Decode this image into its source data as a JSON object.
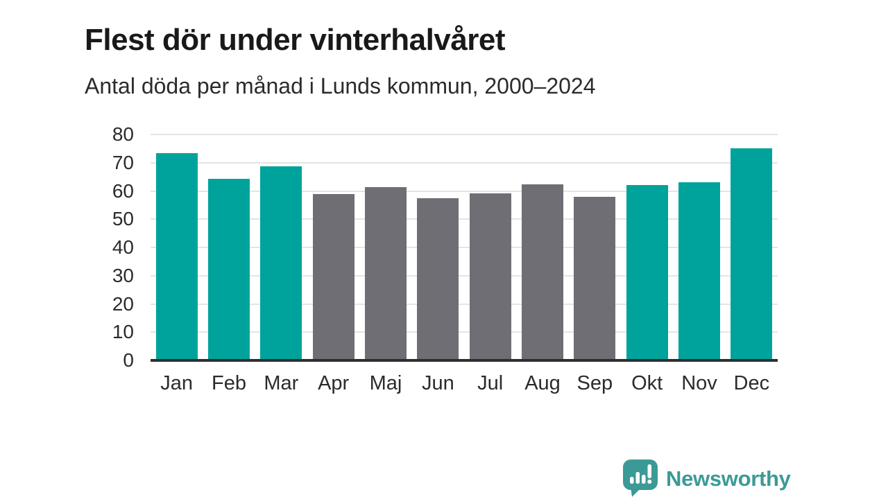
{
  "header": {
    "title": "Flest dör under vinterhalvåret",
    "subtitle": "Antal döda per månad i Lunds kommun, 2000–2024"
  },
  "chart_data": {
    "type": "bar",
    "title": "Flest dör under vinterhalvåret",
    "subtitle": "Antal döda per månad i Lunds kommun, 2000–2024",
    "categories": [
      "Jan",
      "Feb",
      "Mar",
      "Apr",
      "Maj",
      "Jun",
      "Jul",
      "Aug",
      "Sep",
      "Okt",
      "Nov",
      "Dec"
    ],
    "values": [
      73.4,
      64.3,
      68.6,
      58.8,
      61.3,
      57.4,
      59.2,
      62.4,
      57.8,
      62.1,
      63.1,
      75.2
    ],
    "bar_styles": [
      "highlight",
      "highlight",
      "highlight",
      "muted",
      "muted",
      "muted",
      "muted",
      "muted",
      "muted",
      "highlight",
      "highlight",
      "highlight"
    ],
    "bar_palette": {
      "highlight": "#00a39b",
      "muted": "#6e6e74"
    },
    "xlabel": "",
    "ylabel": "",
    "ylim": [
      0,
      80
    ],
    "yticks": [
      0,
      10,
      20,
      30,
      40,
      50,
      60,
      70,
      80
    ],
    "grid": true,
    "legend": false,
    "gridline_color": "#e4e4e4",
    "axis_color": "#2e2e2e"
  },
  "footer": {
    "logo_text": "Newsworthy",
    "logo_color": "#3b9a96"
  }
}
